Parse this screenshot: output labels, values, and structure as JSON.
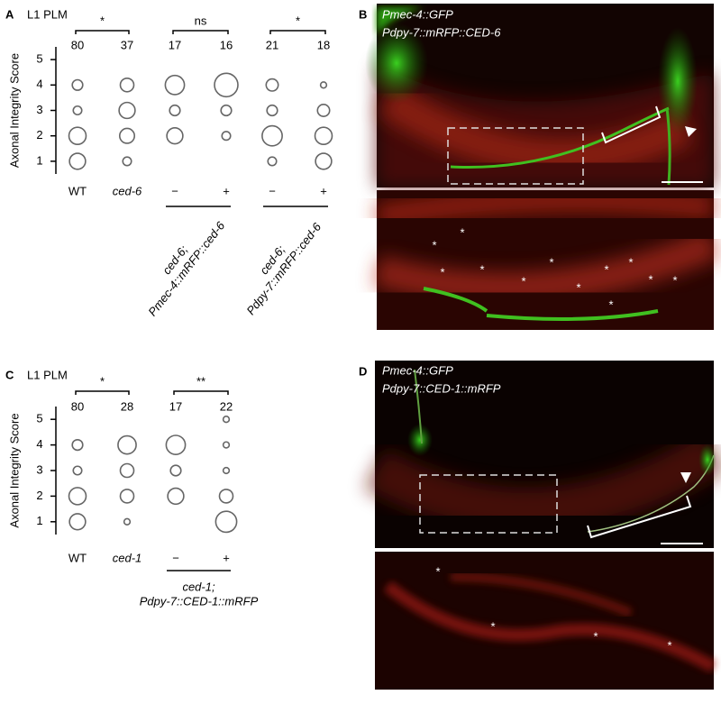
{
  "chart_data": [
    {
      "type": "bubble",
      "letter": "A",
      "title": "L1 PLM",
      "ylabel": "Axonal Integrity Score",
      "categories": [
        "WT",
        "ced-6",
        "−",
        "+",
        "−",
        "+"
      ],
      "counts": [
        80,
        37,
        17,
        16,
        21,
        18
      ],
      "significance": [
        "*",
        "ns",
        "*"
      ],
      "groups": [
        [
          "ced-6;",
          "Pmec-4::mRFP::ced-6"
        ],
        [
          "ced-6;",
          "Pdpy-7::mRFP::ced-6"
        ]
      ],
      "ylim": [
        0.5,
        5.5
      ],
      "yticks": [
        1,
        2,
        3,
        4,
        5
      ],
      "values": [
        [
          35,
          40,
          10,
          15,
          null
        ],
        [
          10,
          30,
          35,
          25,
          null
        ],
        [
          null,
          35,
          15,
          50,
          null
        ],
        [
          null,
          10,
          15,
          75,
          null
        ],
        [
          10,
          55,
          15,
          20,
          null
        ],
        [
          35,
          40,
          20,
          5,
          null
        ]
      ]
    },
    {
      "type": "bubble",
      "letter": "C",
      "title": "L1 PLM",
      "ylabel": "Axonal Integrity Score",
      "categories": [
        "WT",
        "ced-1",
        "−",
        "+"
      ],
      "counts": [
        80,
        28,
        17,
        22
      ],
      "significance": [
        "*",
        "**"
      ],
      "groups": [
        [
          "ced-1;",
          "Pdpy-7::CED-1::mRFP"
        ]
      ],
      "ylim": [
        0.5,
        5.5
      ],
      "yticks": [
        1,
        2,
        3,
        4,
        5
      ],
      "values": [
        [
          35,
          40,
          10,
          15,
          null
        ],
        [
          5,
          25,
          25,
          45,
          null
        ],
        [
          null,
          35,
          15,
          50,
          null
        ],
        [
          60,
          25,
          5,
          5,
          5
        ]
      ]
    }
  ],
  "images": [
    {
      "letter": "B",
      "labels": [
        "Pmec-4::GFP",
        "Pdpy-7::mRFP::CED-6"
      ],
      "markers": [
        "*",
        "*",
        "*",
        "*",
        "*",
        "*",
        "*",
        "*",
        "*",
        "*",
        "*",
        "*"
      ]
    },
    {
      "letter": "D",
      "labels": [
        "Pmec-4::GFP",
        "Pdpy-7::CED-1::mRFP"
      ],
      "markers": [
        "*",
        "*",
        "*",
        "*"
      ]
    }
  ]
}
